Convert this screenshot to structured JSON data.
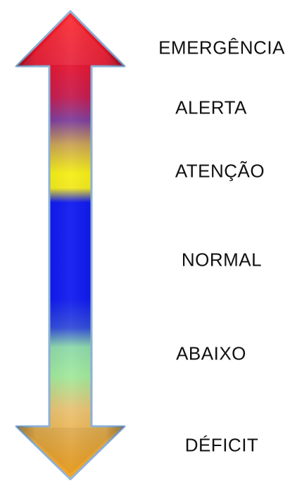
{
  "levels": [
    {
      "label": "EMERGÊNCIA",
      "color": "#e8102a"
    },
    {
      "label": "ALERTA",
      "color": "#7a3a9a"
    },
    {
      "label": "ATENÇÃO",
      "color": "#f4ee10"
    },
    {
      "label": "NORMAL",
      "color": "#0a14ee"
    },
    {
      "label": "ABAIXO",
      "color": "#9ee89a"
    },
    {
      "label": "DÉFICIT",
      "color": "#f59a0a"
    }
  ],
  "arrow": {
    "type": "double-headed-vertical-arrow",
    "outline_color": "#8fb3d9",
    "top_color": "#ff1a1a",
    "bottom_color": "#ff9a00"
  }
}
